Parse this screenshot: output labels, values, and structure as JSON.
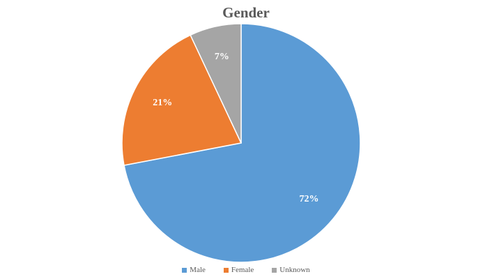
{
  "chart_data": {
    "type": "pie",
    "title": "Gender",
    "categories": [
      "Male",
      "Female",
      "Unknown"
    ],
    "values": [
      72,
      21,
      7
    ],
    "data_labels": [
      "72%",
      "21%",
      "7%"
    ],
    "colors": [
      "#5B9BD5",
      "#ED7D31",
      "#A5A5A5"
    ],
    "legend_position": "bottom",
    "start_angle_deg": 0,
    "direction": "clockwise"
  }
}
